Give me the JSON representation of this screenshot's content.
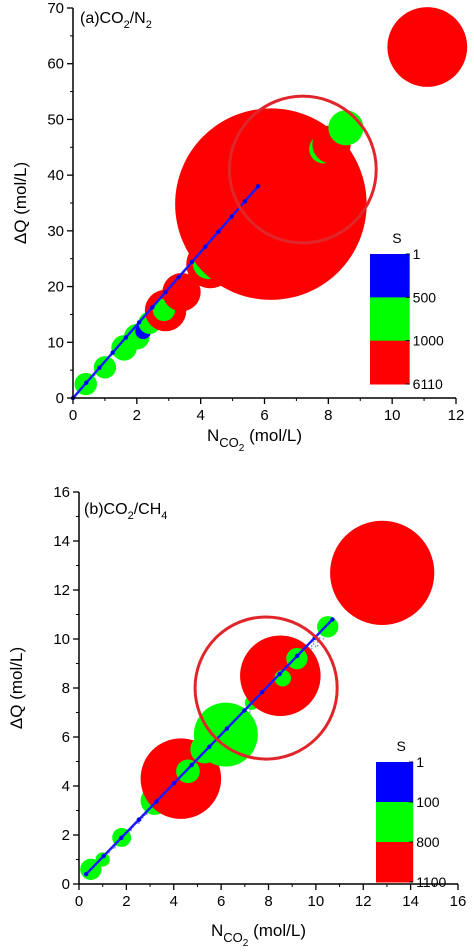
{
  "chart_data": [
    {
      "type": "scatter",
      "panel_label": "(a)CO",
      "panel_label_sub": "2",
      "panel_label_mid": "/N",
      "panel_label_sub2": "2",
      "xlabel_main": "N",
      "xlabel_sub": "CO",
      "xlabel_sub2": "2",
      "xlabel_unit": " (mol/L)",
      "ylabel": "ΔQ (mol/L)",
      "xlim": [
        0,
        12
      ],
      "ylim": [
        0,
        70
      ],
      "xticks": [
        "0",
        "2",
        "4",
        "6",
        "8",
        "10",
        "12"
      ],
      "xtick_values": [
        0,
        2,
        4,
        6,
        8,
        10,
        12
      ],
      "yticks": [
        "0",
        "10",
        "20",
        "30",
        "40",
        "50",
        "60",
        "70"
      ],
      "ytick_values": [
        0,
        10,
        20,
        30,
        40,
        50,
        60,
        70
      ],
      "legend": {
        "title": "S",
        "labels": [
          "1",
          "500",
          "1000",
          "6110"
        ],
        "colors": [
          "#0000ff",
          "#00ff00",
          "#ff0000"
        ]
      },
      "highlight_circle": {
        "x": 7.2,
        "y": 41,
        "r_x": 2.3,
        "color": "#e0262a"
      },
      "line_points": [
        [
          0,
          0
        ],
        [
          5.8,
          38
        ]
      ],
      "points": [
        {
          "x": 0.4,
          "y": 2.5,
          "size": 0.35,
          "color": "#00ff00"
        },
        {
          "x": 1.0,
          "y": 5.5,
          "size": 0.35,
          "color": "#00ff00"
        },
        {
          "x": 1.6,
          "y": 9.0,
          "size": 0.4,
          "color": "#00ff00"
        },
        {
          "x": 2.0,
          "y": 11.0,
          "size": 0.4,
          "color": "#00ff00"
        },
        {
          "x": 2.2,
          "y": 12.0,
          "size": 0.25,
          "color": "#0000ff"
        },
        {
          "x": 2.4,
          "y": 13.5,
          "size": 0.35,
          "color": "#00ff00"
        },
        {
          "x": 2.9,
          "y": 15.7,
          "size": 0.65,
          "color": "#ff0000"
        },
        {
          "x": 2.85,
          "y": 15.8,
          "size": 0.35,
          "color": "#00ff00"
        },
        {
          "x": 3.4,
          "y": 19.0,
          "size": 0.6,
          "color": "#ff0000"
        },
        {
          "x": 4.3,
          "y": 24.0,
          "size": 0.75,
          "color": "#ff0000"
        },
        {
          "x": 4.25,
          "y": 24.2,
          "size": 0.5,
          "color": "#00ff00"
        },
        {
          "x": 4.65,
          "y": 26.0,
          "size": 0.7,
          "color": "#ff0000"
        },
        {
          "x": 5.4,
          "y": 31.5,
          "size": 0.55,
          "color": "#00ff00"
        },
        {
          "x": 6.2,
          "y": 34.8,
          "size": 3.0,
          "color": "#ff0000"
        },
        {
          "x": 7.1,
          "y": 43.5,
          "size": 1.2,
          "color": "#ff0000"
        },
        {
          "x": 7.85,
          "y": 44.7,
          "size": 0.45,
          "color": "#00ff00"
        },
        {
          "x": 8.1,
          "y": 45.5,
          "size": 0.6,
          "color": "#ff0000"
        },
        {
          "x": 8.55,
          "y": 48.5,
          "size": 0.55,
          "color": "#00ff00"
        },
        {
          "x": 11.1,
          "y": 63.0,
          "size": 1.25,
          "color": "#ff0000"
        }
      ]
    },
    {
      "type": "scatter",
      "panel_label": "(b)CO",
      "panel_label_sub": "2",
      "panel_label_mid": "/CH",
      "panel_label_sub2": "4",
      "xlabel_main": "N",
      "xlabel_sub": "CO",
      "xlabel_sub2": "2",
      "xlabel_unit": " (mol/L)",
      "ylabel": "ΔQ (mol/L)",
      "xlim": [
        0,
        16
      ],
      "ylim": [
        0,
        16
      ],
      "xticks": [
        "0",
        "2",
        "4",
        "6",
        "8",
        "10",
        "12",
        "14",
        "16"
      ],
      "xtick_values": [
        0,
        2,
        4,
        6,
        8,
        10,
        12,
        14,
        16
      ],
      "yticks": [
        "0",
        "2",
        "4",
        "6",
        "8",
        "10",
        "12",
        "14",
        "16"
      ],
      "ytick_values": [
        0,
        2,
        4,
        6,
        8,
        10,
        12,
        14,
        16
      ],
      "legend": {
        "title": "S",
        "labels": [
          "1",
          "100",
          "800",
          "1100"
        ],
        "colors": [
          "#0000ff",
          "#00ff00",
          "#ff0000"
        ]
      },
      "highlight_circle": {
        "x": 7.9,
        "y": 8.0,
        "r_x": 3.0,
        "color": "#e0262a"
      },
      "line_points": [
        [
          0.3,
          0.4
        ],
        [
          10.7,
          10.8
        ]
      ],
      "points": [
        {
          "x": 0.5,
          "y": 0.6,
          "size": 0.45,
          "color": "#00ff00"
        },
        {
          "x": 1.0,
          "y": 1.0,
          "size": 0.3,
          "color": "#00ff00"
        },
        {
          "x": 1.8,
          "y": 1.9,
          "size": 0.4,
          "color": "#00ff00"
        },
        {
          "x": 3.2,
          "y": 3.4,
          "size": 0.6,
          "color": "#00ff00"
        },
        {
          "x": 4.3,
          "y": 4.3,
          "size": 1.7,
          "color": "#ff0000"
        },
        {
          "x": 4.6,
          "y": 4.6,
          "size": 0.5,
          "color": "#00ff00"
        },
        {
          "x": 5.3,
          "y": 5.5,
          "size": 0.6,
          "color": "#00ff00"
        },
        {
          "x": 6.2,
          "y": 6.1,
          "size": 1.35,
          "color": "#00ff00"
        },
        {
          "x": 7.3,
          "y": 7.4,
          "size": 0.3,
          "color": "#00ff00"
        },
        {
          "x": 8.5,
          "y": 8.5,
          "size": 1.7,
          "color": "#ff0000"
        },
        {
          "x": 8.6,
          "y": 8.4,
          "size": 0.35,
          "color": "#00ff00"
        },
        {
          "x": 9.2,
          "y": 9.2,
          "size": 0.45,
          "color": "#00ff00"
        },
        {
          "x": 10.5,
          "y": 10.5,
          "size": 0.45,
          "color": "#00ff00"
        },
        {
          "x": 12.8,
          "y": 12.7,
          "size": 2.2,
          "color": "#ff0000"
        }
      ]
    }
  ]
}
